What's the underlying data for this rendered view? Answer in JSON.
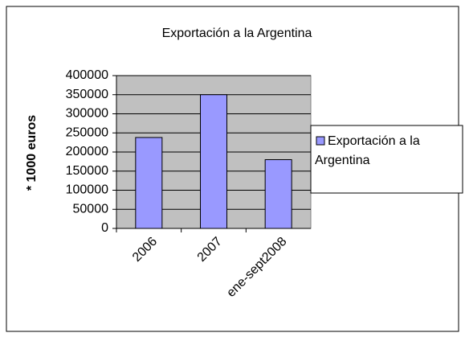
{
  "chart_data": {
    "type": "bar",
    "title": "Exportación a la Argentina",
    "y_label": "* 1000 euros",
    "categories": [
      "2006",
      "2007",
      "ene-sept2008"
    ],
    "series": [
      {
        "name": "Exportación a la Argentina",
        "color": "#9999ff",
        "values": [
          238000,
          350000,
          180000
        ]
      }
    ],
    "ylim": [
      0,
      400000
    ],
    "yticks": [
      0,
      50000,
      100000,
      150000,
      200000,
      250000,
      300000,
      350000,
      400000
    ],
    "grid": true,
    "legend": "right"
  }
}
